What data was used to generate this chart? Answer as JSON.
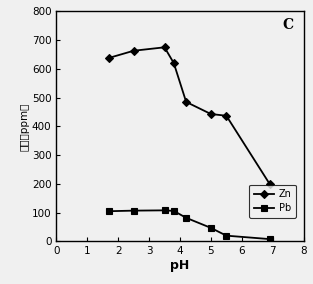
{
  "title": "C",
  "xlabel": "pH",
  "ylabel": "含量（ppm）",
  "xlim": [
    0,
    8
  ],
  "ylim": [
    0,
    800
  ],
  "xticks": [
    0,
    1,
    2,
    3,
    4,
    5,
    6,
    7,
    8
  ],
  "yticks": [
    0,
    100,
    200,
    300,
    400,
    500,
    600,
    700,
    800
  ],
  "Zn_x": [
    1.7,
    2.5,
    3.5,
    3.8,
    4.2,
    5.0,
    5.5,
    6.9
  ],
  "Zn_y": [
    638,
    663,
    675,
    620,
    485,
    443,
    437,
    200
  ],
  "Pb_x": [
    1.7,
    2.5,
    3.5,
    3.8,
    4.2,
    5.0,
    5.5,
    6.9
  ],
  "Pb_y": [
    105,
    107,
    108,
    106,
    82,
    47,
    20,
    8
  ],
  "line_color": "#000000",
  "Zn_marker": "D",
  "Pb_marker": "s",
  "background_color": "#f0f0f0",
  "legend_Zn": "Zn",
  "legend_Pb": "Pb"
}
